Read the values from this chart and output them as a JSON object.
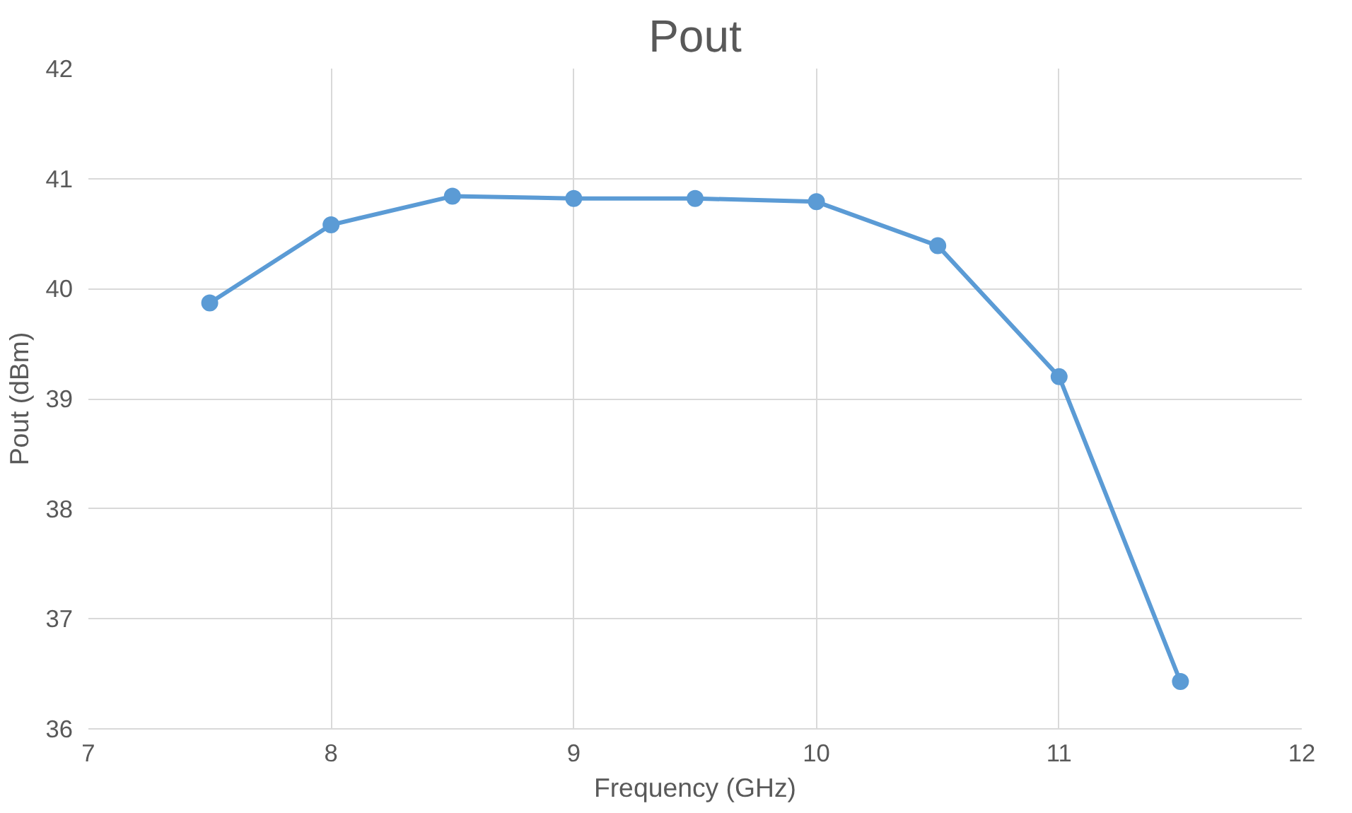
{
  "chart_data": {
    "type": "line",
    "title": "Pout",
    "xlabel": "Frequency (GHz)",
    "ylabel": "Pout (dBm)",
    "x": [
      7.5,
      8,
      8.5,
      9,
      9.5,
      10,
      10.5,
      11,
      11.5
    ],
    "series": [
      {
        "color": "#5b9bd5",
        "values": [
          39.87,
          40.58,
          40.84,
          40.82,
          40.82,
          40.79,
          40.39,
          39.2,
          36.43
        ]
      }
    ],
    "xlim": [
      7,
      12
    ],
    "xticks": [
      7,
      8,
      9,
      10,
      11,
      12
    ],
    "ylim": [
      36,
      42
    ],
    "yticks": [
      36,
      37,
      38,
      39,
      40,
      41,
      42
    ],
    "grid": true,
    "marker": "circle",
    "line_style": "solid"
  }
}
